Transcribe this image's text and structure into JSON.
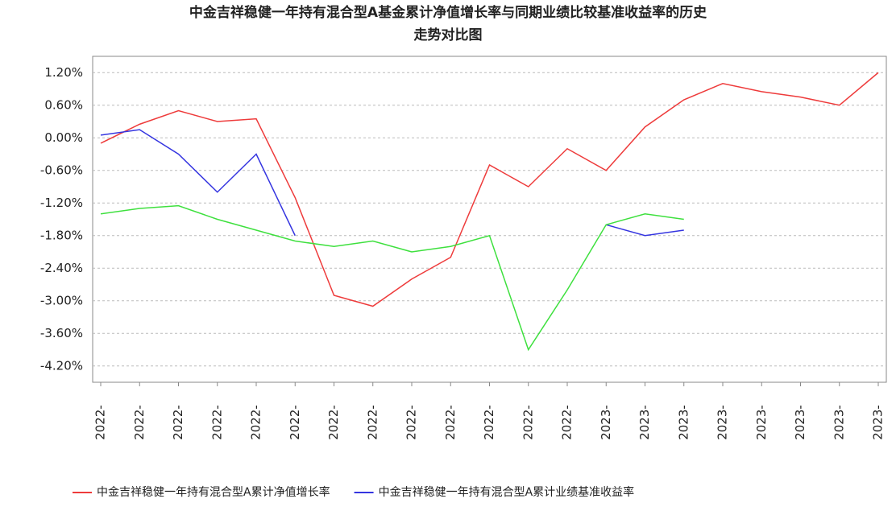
{
  "chart_data": {
    "type": "line",
    "title": "中金吉祥稳健一年持有混合型A基金累计净值增长率与同期业绩比较基准收益率的历史",
    "subtitle": "走势对比图",
    "categories": [
      "2022-",
      "2022-",
      "2022-",
      "2022-",
      "2022-",
      "2022-",
      "2022-",
      "2022-",
      "2022-",
      "2022-",
      "2022-",
      "2022-",
      "2022-",
      "2023-",
      "2023-",
      "2023-",
      "2023-",
      "2023-",
      "2023-",
      "2023-",
      "2023-"
    ],
    "series": [
      {
        "name": "中金吉祥稳健一年持有混合型A累计净值增长率",
        "color": "#ee3b3b",
        "values": [
          -0.1,
          0.25,
          0.5,
          0.3,
          0.35,
          -1.1,
          -2.9,
          -3.1,
          -2.6,
          -2.2,
          -0.5,
          -0.9,
          -0.2,
          -0.6,
          0.2,
          0.7,
          1.0,
          0.85,
          0.75,
          0.6,
          1.2
        ]
      },
      {
        "name": "中金吉祥稳健一年持有混合型A累计业绩基准收益率",
        "color": "#3535e0",
        "values": [
          0.05,
          0.15,
          -0.3,
          -1.0,
          -0.3,
          -1.8,
          null,
          null,
          null,
          null,
          null,
          null,
          null,
          -1.6,
          -1.8,
          -1.7,
          null,
          null,
          null,
          null,
          null
        ]
      },
      {
        "color": "#3ee03e",
        "values": [
          -1.4,
          -1.3,
          -1.25,
          -1.5,
          -1.7,
          -1.9,
          -2.0,
          -1.9,
          -2.1,
          -2.0,
          -1.8,
          -3.9,
          -2.8,
          -1.6,
          -1.4,
          -1.5,
          null,
          null,
          null,
          null,
          null
        ]
      }
    ],
    "ylim": [
      -4.5,
      1.5
    ],
    "yticks": [
      {
        "value": 1.2,
        "label": "1.20%"
      },
      {
        "value": 0.6,
        "label": "0.60%"
      },
      {
        "value": 0,
        "label": "0.00%"
      },
      {
        "value": -0.6,
        "label": "-0.60%"
      },
      {
        "value": -1.2,
        "label": "-1.20%"
      },
      {
        "value": -1.8,
        "label": "-1.80%"
      },
      {
        "value": -2.4,
        "label": "-2.40%"
      },
      {
        "value": -3.0,
        "label": "-3.00%"
      },
      {
        "value": -3.6,
        "label": "-3.60%"
      },
      {
        "value": -4.2,
        "label": "-4.20%"
      }
    ],
    "grid": true
  }
}
